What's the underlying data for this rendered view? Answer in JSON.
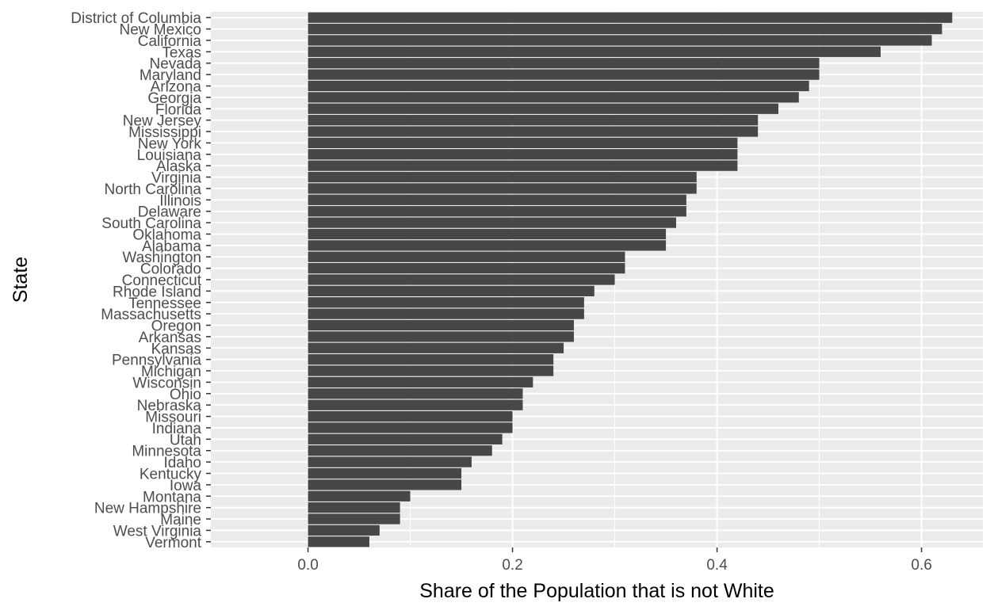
{
  "chart_data": {
    "type": "bar",
    "orientation": "horizontal",
    "xlabel": "Share of the Population that is not White",
    "ylabel": "State",
    "xlim": [
      -0.095,
      0.66
    ],
    "x_ticks": [
      0.0,
      0.2,
      0.4,
      0.6
    ],
    "x_tick_labels": [
      "0.0",
      "0.2",
      "0.4",
      "0.6"
    ],
    "grid": true,
    "colors": {
      "bar": "#474747",
      "panel": "#ebebeb",
      "grid": "#ffffff"
    },
    "categories": [
      "District of Columbia",
      "New Mexico",
      "California",
      "Texas",
      "Nevada",
      "Maryland",
      "Arizona",
      "Georgia",
      "Florida",
      "New Jersey",
      "Mississippi",
      "New York",
      "Louisiana",
      "Alaska",
      "Virginia",
      "North Carolina",
      "Illinois",
      "Delaware",
      "South Carolina",
      "Oklahoma",
      "Alabama",
      "Washington",
      "Colorado",
      "Connecticut",
      "Rhode Island",
      "Tennessee",
      "Massachusetts",
      "Oregon",
      "Arkansas",
      "Kansas",
      "Pennsylvania",
      "Michigan",
      "Wisconsin",
      "Ohio",
      "Nebraska",
      "Missouri",
      "Indiana",
      "Utah",
      "Minnesota",
      "Idaho",
      "Kentucky",
      "Iowa",
      "Montana",
      "New Hampshire",
      "Maine",
      "West Virginia",
      "Vermont"
    ],
    "values": [
      0.63,
      0.62,
      0.61,
      0.56,
      0.5,
      0.5,
      0.49,
      0.48,
      0.46,
      0.44,
      0.44,
      0.42,
      0.42,
      0.42,
      0.38,
      0.38,
      0.37,
      0.37,
      0.36,
      0.35,
      0.35,
      0.31,
      0.31,
      0.3,
      0.28,
      0.27,
      0.27,
      0.26,
      0.26,
      0.25,
      0.24,
      0.24,
      0.22,
      0.21,
      0.21,
      0.2,
      0.2,
      0.19,
      0.18,
      0.16,
      0.15,
      0.15,
      0.1,
      0.09,
      0.09,
      0.07,
      0.06
    ]
  }
}
